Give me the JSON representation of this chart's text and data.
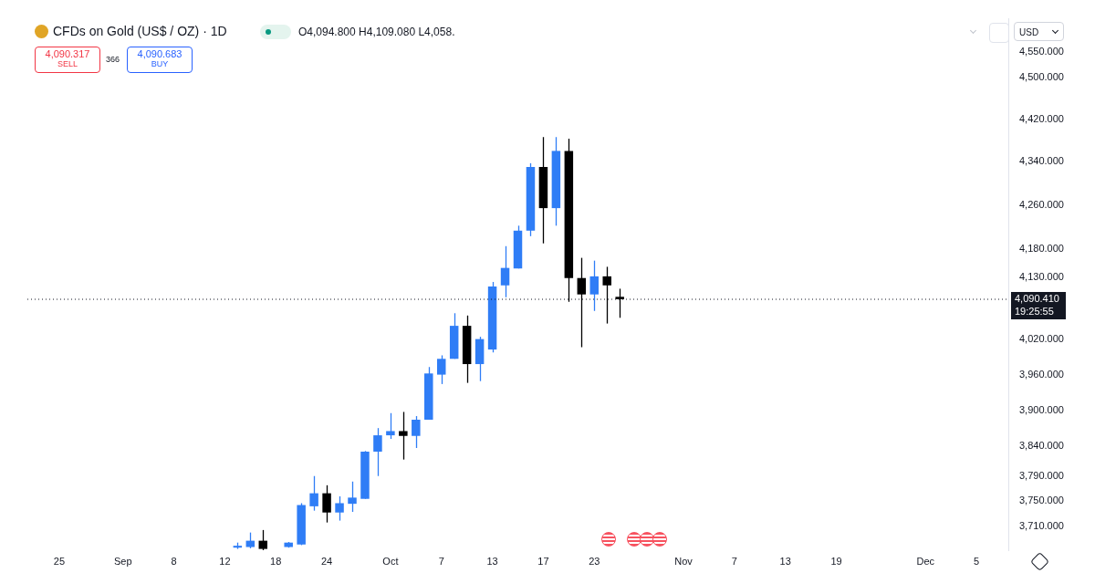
{
  "chart_data": {
    "type": "candlestick",
    "title": "CFDs on Gold (US$ / OZ) · 1D",
    "categories": [
      null,
      null,
      "25",
      null,
      null,
      null,
      null,
      "Sep",
      null,
      null,
      null,
      "8",
      null,
      null,
      null,
      "12",
      null,
      null,
      null,
      "18",
      null,
      null,
      null,
      "24",
      null,
      null,
      null,
      null,
      "Oct",
      null,
      null,
      null,
      "7",
      null,
      null,
      null,
      "13",
      null,
      null,
      null,
      "17",
      null,
      null,
      null,
      "23",
      null,
      null,
      null,
      null,
      null,
      null,
      "Nov",
      null,
      null,
      null,
      "7",
      null,
      null,
      null,
      "13",
      null,
      null,
      null,
      "19",
      null,
      null,
      null,
      null,
      null,
      null,
      "Dec",
      null,
      null,
      null,
      "5",
      null,
      null
    ],
    "ohlc": [
      null,
      null,
      null,
      null,
      null,
      null,
      null,
      null,
      null,
      null,
      null,
      null,
      null,
      null,
      null,
      null,
      [
        3676,
        3684,
        3674,
        3679
      ],
      [
        3677,
        3700,
        3675,
        3687
      ],
      [
        3687,
        3704,
        3672,
        3674
      ],
      null,
      [
        3677,
        3685,
        3676,
        3684
      ],
      [
        3681,
        3747,
        3680,
        3744
      ],
      [
        3742,
        3791,
        3735,
        3763
      ],
      [
        3763,
        3776,
        3716,
        3732
      ],
      [
        3732,
        3758,
        3719,
        3747
      ],
      [
        3746,
        3782,
        3733,
        3756
      ],
      [
        3754,
        3832,
        3754,
        3831
      ],
      [
        3831,
        3870,
        3791,
        3858
      ],
      [
        3858,
        3895,
        3852,
        3865
      ],
      [
        3865,
        3897,
        3818,
        3857
      ],
      [
        3857,
        3890,
        3837,
        3884
      ],
      [
        3884,
        3973,
        3884,
        3962
      ],
      [
        3960,
        3993,
        3944,
        3987
      ],
      [
        3987,
        4066,
        3987,
        4044
      ],
      [
        4044,
        4062,
        3946,
        3978
      ],
      [
        3978,
        4025,
        3949,
        4021
      ],
      [
        4003,
        4121,
        3998,
        4113
      ],
      [
        4115,
        4185,
        4094,
        4146
      ],
      [
        4145,
        4222,
        4145,
        4213
      ],
      [
        4213,
        4337,
        4203,
        4330
      ],
      [
        4330,
        4386,
        4190,
        4254
      ],
      [
        4254,
        4386,
        4222,
        4360
      ],
      [
        4360,
        4383,
        4086,
        4128
      ],
      [
        4128,
        4164,
        4007,
        4099
      ],
      [
        4099,
        4159,
        4070,
        4131
      ],
      [
        4131,
        4148,
        4048,
        4115
      ],
      [
        4094.8,
        4109.08,
        4058,
        4090.41
      ],
      null,
      null,
      null,
      null,
      null,
      null,
      null,
      null,
      null,
      null,
      null,
      null,
      null,
      null,
      null,
      null,
      null,
      null,
      null,
      null,
      null,
      null,
      null,
      null,
      null,
      null,
      null,
      null,
      null,
      null
    ],
    "colors": [
      null,
      null,
      null,
      null,
      null,
      null,
      null,
      null,
      null,
      null,
      null,
      null,
      null,
      null,
      null,
      null,
      "#2f7df6",
      "#2f7df6",
      "#000000",
      null,
      "#2f7df6",
      "#2f7df6",
      "#2f7df6",
      "#000000",
      "#2f7df6",
      "#2f7df6",
      "#2f7df6",
      "#2f7df6",
      "#2f7df6",
      "#000000",
      "#2f7df6",
      "#2f7df6",
      "#2f7df6",
      "#2f7df6",
      "#000000",
      "#2f7df6",
      "#2f7df6",
      "#2f7df6",
      "#2f7df6",
      "#2f7df6",
      "#000000",
      "#2f7df6",
      "#000000",
      "#000000",
      "#2f7df6",
      "#000000",
      "#000000",
      null,
      null,
      null,
      null,
      null,
      null,
      null,
      null,
      null,
      null,
      null,
      null,
      null,
      null,
      null,
      null,
      null,
      null,
      null,
      null,
      null,
      null,
      null,
      null,
      null,
      null,
      null,
      null,
      null,
      null
    ],
    "log": "y",
    "ylim": [
      3672,
      4616
    ],
    "yticks": [
      {
        "value": 4550,
        "label": "4,550.000"
      },
      {
        "value": 4500,
        "label": "4,500.000"
      },
      {
        "value": 4420,
        "label": "4,420.000"
      },
      {
        "value": 4340,
        "label": "4,340.000"
      },
      {
        "value": 4260,
        "label": "4,260.000"
      },
      {
        "value": 4180,
        "label": "4,180.000"
      },
      {
        "value": 4130,
        "label": "4,130.000"
      },
      {
        "value": 4020,
        "label": "4,020.000"
      },
      {
        "value": 3960,
        "label": "3,960.000"
      },
      {
        "value": 3900,
        "label": "3,900.000"
      },
      {
        "value": 3840,
        "label": "3,840.000"
      },
      {
        "value": 3790,
        "label": "3,790.000"
      },
      {
        "value": 3750,
        "label": "3,750.000"
      },
      {
        "value": 3710,
        "label": "3,710.000"
      }
    ],
    "grid": false,
    "legend": false,
    "ref_lines": [
      {
        "axis": "y",
        "value": 4090.41,
        "label": "4,090.410",
        "color": "#131722",
        "line_style": "dotted"
      }
    ],
    "annotations": [
      "O4,094.800 H4,109.080 L4,058.",
      "4,090.317",
      "SELL",
      "366",
      "4,090.683",
      "BUY",
      "USD",
      "19:25:55"
    ]
  }
}
